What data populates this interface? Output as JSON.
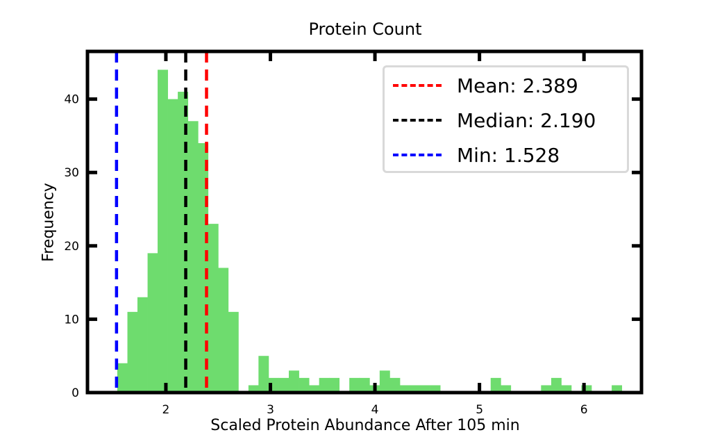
{
  "chart_data": {
    "type": "bar",
    "title": "Protein Count",
    "xlabel": "Scaled Protein Abundance After 105 min",
    "ylabel": "Frequency",
    "xlim": [
      1.25,
      6.55
    ],
    "ylim": [
      0,
      46.5
    ],
    "bar_color": "#6edc6e",
    "bin_width": 0.0965,
    "bins": [
      {
        "start": 1.535,
        "count": 4
      },
      {
        "start": 1.632,
        "count": 11
      },
      {
        "start": 1.728,
        "count": 13
      },
      {
        "start": 1.825,
        "count": 19
      },
      {
        "start": 1.921,
        "count": 44
      },
      {
        "start": 2.018,
        "count": 40
      },
      {
        "start": 2.114,
        "count": 41
      },
      {
        "start": 2.211,
        "count": 37
      },
      {
        "start": 2.307,
        "count": 34
      },
      {
        "start": 2.404,
        "count": 23
      },
      {
        "start": 2.5,
        "count": 17
      },
      {
        "start": 2.597,
        "count": 11
      },
      {
        "start": 2.79,
        "count": 1
      },
      {
        "start": 2.886,
        "count": 5
      },
      {
        "start": 2.983,
        "count": 2
      },
      {
        "start": 3.08,
        "count": 2
      },
      {
        "start": 3.176,
        "count": 3
      },
      {
        "start": 3.273,
        "count": 2
      },
      {
        "start": 3.369,
        "count": 1
      },
      {
        "start": 3.466,
        "count": 2
      },
      {
        "start": 3.562,
        "count": 2
      },
      {
        "start": 3.755,
        "count": 2
      },
      {
        "start": 3.852,
        "count": 2
      },
      {
        "start": 3.948,
        "count": 1
      },
      {
        "start": 4.045,
        "count": 3
      },
      {
        "start": 4.142,
        "count": 2
      },
      {
        "start": 4.238,
        "count": 1
      },
      {
        "start": 4.335,
        "count": 1
      },
      {
        "start": 4.431,
        "count": 1
      },
      {
        "start": 4.528,
        "count": 1
      },
      {
        "start": 5.107,
        "count": 2
      },
      {
        "start": 5.203,
        "count": 1
      },
      {
        "start": 5.589,
        "count": 1
      },
      {
        "start": 5.686,
        "count": 2
      },
      {
        "start": 5.782,
        "count": 1
      },
      {
        "start": 5.975,
        "count": 1
      },
      {
        "start": 6.265,
        "count": 1
      }
    ],
    "x_ticks": [
      2,
      3,
      4,
      5,
      6
    ],
    "y_ticks": [
      0,
      10,
      20,
      30,
      40
    ],
    "reference_lines": [
      {
        "label": "Mean: 2.389",
        "x": 2.389,
        "color": "#ff0000"
      },
      {
        "label": "Median: 2.190",
        "x": 2.19,
        "color": "#000000"
      },
      {
        "label": "Min: 1.528",
        "x": 1.528,
        "color": "#0000ff"
      }
    ],
    "legend_position": "upper right",
    "grid": false
  }
}
